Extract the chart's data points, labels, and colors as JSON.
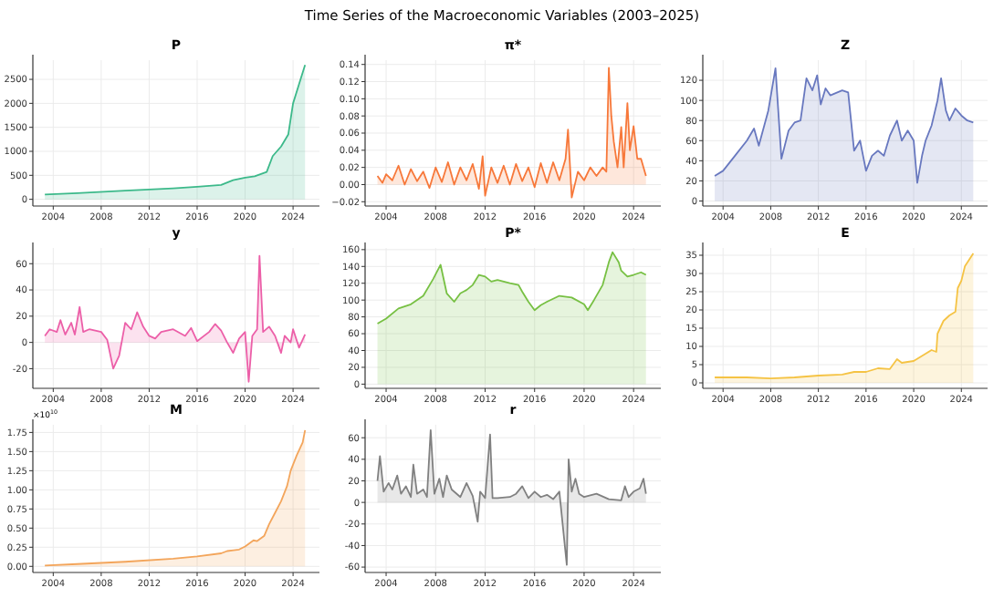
{
  "chart_data": [
    {
      "type": "area",
      "title": "P",
      "annotations": [
        "Time Series of the Macroeconomic Variables (2003–2025)"
      ],
      "grid": true,
      "xlim": [
        2002.3,
        2026.2
      ],
      "xticks": [
        2004,
        2008,
        2012,
        2016,
        2020,
        2024
      ],
      "ylim": [
        -140,
        2900
      ],
      "yticks": [
        0,
        500,
        1000,
        1500,
        2000,
        2500
      ],
      "x": [
        2003.3,
        2006,
        2010,
        2014,
        2016,
        2018,
        2019,
        2020,
        2020.8,
        2021.8,
        2022.3,
        2023,
        2023.6,
        2024,
        2024.5,
        2025
      ],
      "series": [
        {
          "color": "#3cb98a",
          "values": [
            100,
            130,
            180,
            230,
            260,
            300,
            400,
            450,
            480,
            570,
            900,
            1100,
            1350,
            2000,
            2400,
            2800
          ]
        }
      ]
    },
    {
      "type": "area",
      "title": "π*",
      "grid": true,
      "xlim": [
        2002.3,
        2026.2
      ],
      "xticks": [
        2004,
        2008,
        2012,
        2016,
        2020,
        2024
      ],
      "ylim": [
        -0.025,
        0.145
      ],
      "yticks": [
        {
          "value": -0.02,
          "label": "−0.02"
        },
        {
          "value": 0,
          "label": "0.00"
        },
        {
          "value": 0.02,
          "label": "0.02"
        },
        {
          "value": 0.04,
          "label": "0.04"
        },
        {
          "value": 0.06,
          "label": "0.06"
        },
        {
          "value": 0.08,
          "label": "0.08"
        },
        {
          "value": 0.1,
          "label": "0.10"
        },
        {
          "value": 0.12,
          "label": "0.12"
        },
        {
          "value": 0.14,
          "label": "0.14"
        }
      ],
      "x": [
        2003.3,
        2003.7,
        2004,
        2004.5,
        2005,
        2005.5,
        2006,
        2006.5,
        2007,
        2007.5,
        2008,
        2008.5,
        2009,
        2009.5,
        2010,
        2010.5,
        2011,
        2011.5,
        2011.8,
        2012,
        2012.5,
        2013,
        2013.5,
        2014,
        2014.5,
        2015,
        2015.5,
        2016,
        2016.5,
        2017,
        2017.5,
        2018,
        2018.5,
        2018.7,
        2019,
        2019.5,
        2020,
        2020.5,
        2021,
        2021.5,
        2021.8,
        2022,
        2022.2,
        2022.4,
        2022.7,
        2023,
        2023.2,
        2023.5,
        2023.7,
        2024,
        2024.3,
        2024.6,
        2025
      ],
      "series": [
        {
          "color": "#f7783a",
          "values": [
            0.01,
            0.002,
            0.012,
            0.005,
            0.022,
            0.0,
            0.018,
            0.004,
            0.015,
            -0.004,
            0.02,
            0.003,
            0.026,
            0.0,
            0.02,
            0.005,
            0.024,
            -0.005,
            0.033,
            -0.013,
            0.02,
            0.002,
            0.022,
            0.0,
            0.024,
            0.004,
            0.02,
            -0.003,
            0.025,
            0.002,
            0.026,
            0.005,
            0.03,
            0.064,
            -0.015,
            0.015,
            0.005,
            0.02,
            0.01,
            0.02,
            0.015,
            0.136,
            0.08,
            0.05,
            0.02,
            0.067,
            0.02,
            0.095,
            0.04,
            0.068,
            0.03,
            0.03,
            0.01
          ]
        }
      ]
    },
    {
      "type": "area",
      "title": "Z",
      "grid": true,
      "xlim": [
        2002.3,
        2026.2
      ],
      "xticks": [
        2004,
        2008,
        2012,
        2016,
        2020,
        2024
      ],
      "ylim": [
        -5,
        140
      ],
      "yticks": [
        0,
        20,
        40,
        60,
        80,
        100,
        120
      ],
      "x": [
        2003.3,
        2004,
        2005,
        2006,
        2006.6,
        2007,
        2007.8,
        2008.4,
        2008.9,
        2009.5,
        2010,
        2010.5,
        2011,
        2011.5,
        2011.9,
        2012.2,
        2012.6,
        2013,
        2014,
        2014.5,
        2015,
        2015.5,
        2016,
        2016.5,
        2017,
        2017.5,
        2018,
        2018.6,
        2019,
        2019.5,
        2020,
        2020.3,
        2020.7,
        2021,
        2021.5,
        2022,
        2022.3,
        2022.7,
        2023,
        2023.5,
        2024,
        2024.5,
        2025
      ],
      "series": [
        {
          "color": "#6878bf",
          "values": [
            25,
            30,
            45,
            60,
            72,
            55,
            90,
            132,
            42,
            70,
            78,
            80,
            122,
            110,
            125,
            96,
            112,
            105,
            110,
            108,
            50,
            60,
            30,
            45,
            50,
            45,
            65,
            80,
            60,
            70,
            60,
            18,
            45,
            60,
            75,
            100,
            122,
            90,
            80,
            92,
            85,
            80,
            78
          ]
        }
      ]
    },
    {
      "type": "area",
      "title": "y",
      "grid": true,
      "xlim": [
        2002.3,
        2026.2
      ],
      "xticks": [
        2004,
        2008,
        2012,
        2016,
        2020,
        2024
      ],
      "ylim": [
        -35,
        72
      ],
      "yticks": [
        -20,
        0,
        20,
        40,
        60
      ],
      "x": [
        2003.3,
        2003.7,
        2004.3,
        2004.6,
        2005,
        2005.5,
        2005.8,
        2006.2,
        2006.5,
        2007,
        2008,
        2008.5,
        2009,
        2009.5,
        2010,
        2010.5,
        2011,
        2011.5,
        2012,
        2012.5,
        2013,
        2014,
        2015,
        2015.5,
        2016,
        2017,
        2017.5,
        2018,
        2018.5,
        2019,
        2019.5,
        2020,
        2020.3,
        2020.6,
        2021,
        2021.2,
        2021.5,
        2022,
        2022.5,
        2023,
        2023.3,
        2023.8,
        2024,
        2024.5,
        2025
      ],
      "series": [
        {
          "color": "#ec5fa8",
          "values": [
            5,
            10,
            8,
            17,
            6,
            15,
            6,
            27,
            8,
            10,
            8,
            2,
            -20,
            -10,
            15,
            10,
            23,
            12,
            5,
            3,
            8,
            10,
            5,
            11,
            1,
            8,
            14,
            9,
            0,
            -8,
            3,
            8,
            -30,
            5,
            10,
            66,
            8,
            12,
            5,
            -8,
            5,
            0,
            10,
            -4,
            6
          ]
        }
      ]
    },
    {
      "type": "area",
      "title": "P*",
      "grid": true,
      "xlim": [
        2002.3,
        2026.2
      ],
      "xticks": [
        2004,
        2008,
        2012,
        2016,
        2020,
        2024
      ],
      "ylim": [
        -5,
        162
      ],
      "yticks": [
        0,
        20,
        40,
        60,
        80,
        100,
        120,
        140,
        160
      ],
      "x": [
        2003.3,
        2004,
        2005,
        2006,
        2007,
        2007.8,
        2008.4,
        2008.9,
        2009.5,
        2010,
        2010.5,
        2011,
        2011.5,
        2012,
        2012.5,
        2013,
        2014,
        2014.7,
        2015,
        2015.5,
        2016,
        2016.5,
        2017,
        2018,
        2019,
        2020,
        2020.3,
        2020.8,
        2021.5,
        2022,
        2022.3,
        2022.8,
        2023,
        2023.5,
        2024,
        2024.6,
        2025
      ],
      "series": [
        {
          "color": "#77c043",
          "values": [
            72,
            78,
            90,
            95,
            105,
            125,
            142,
            108,
            98,
            108,
            112,
            118,
            130,
            128,
            122,
            124,
            120,
            118,
            110,
            98,
            88,
            94,
            98,
            105,
            103,
            95,
            88,
            100,
            118,
            145,
            157,
            145,
            135,
            128,
            130,
            133,
            130
          ]
        }
      ]
    },
    {
      "type": "area",
      "title": "E",
      "grid": true,
      "xlim": [
        2002.3,
        2026.2
      ],
      "xticks": [
        2004,
        2008,
        2012,
        2016,
        2020,
        2024
      ],
      "ylim": [
        -1.5,
        37
      ],
      "yticks": [
        0,
        5,
        10,
        15,
        20,
        25,
        30,
        35
      ],
      "x": [
        2003.3,
        2006,
        2008,
        2010,
        2012,
        2014,
        2015,
        2016,
        2017,
        2018,
        2018.6,
        2019,
        2020,
        2021,
        2021.5,
        2021.9,
        2022,
        2022.5,
        2023,
        2023.5,
        2023.7,
        2024,
        2024.3,
        2025
      ],
      "series": [
        {
          "color": "#f5c344",
          "values": [
            1.5,
            1.5,
            1.2,
            1.5,
            2,
            2.3,
            3,
            3,
            4,
            3.8,
            6.5,
            5.5,
            6,
            8,
            9,
            8.5,
            13.5,
            17,
            18.5,
            19.5,
            26,
            28,
            32,
            35.5
          ]
        }
      ]
    },
    {
      "type": "area",
      "title": "M",
      "annotations": [
        "×10$^{10}$"
      ],
      "grid": true,
      "xlim": [
        2002.3,
        2026.2
      ],
      "xticks": [
        2004,
        2008,
        2012,
        2016,
        2020,
        2024
      ],
      "ylim": [
        -0.08,
        1.85
      ],
      "yticks": [
        {
          "value": 0,
          "label": "0.00"
        },
        {
          "value": 0.25,
          "label": "0.25"
        },
        {
          "value": 0.5,
          "label": "0.50"
        },
        {
          "value": 0.75,
          "label": "0.75"
        },
        {
          "value": 1,
          "label": "1.00"
        },
        {
          "value": 1.25,
          "label": "1.25"
        },
        {
          "value": 1.5,
          "label": "1.50"
        },
        {
          "value": 1.75,
          "label": "1.75"
        }
      ],
      "x": [
        2003.3,
        2006,
        2010,
        2014,
        2016,
        2018,
        2018.5,
        2019.5,
        2020,
        2020.7,
        2021,
        2021.6,
        2022,
        2022.5,
        2023,
        2023.5,
        2023.8,
        2024.3,
        2024.8,
        2025
      ],
      "series": [
        {
          "color": "#f3a55b",
          "values": [
            0.01,
            0.03,
            0.06,
            0.1,
            0.13,
            0.17,
            0.2,
            0.22,
            0.26,
            0.34,
            0.33,
            0.4,
            0.55,
            0.7,
            0.85,
            1.05,
            1.25,
            1.45,
            1.62,
            1.78
          ]
        }
      ]
    },
    {
      "type": "area",
      "title": "r",
      "grid": true,
      "xlim": [
        2002.3,
        2026.2
      ],
      "xticks": [
        2004,
        2008,
        2012,
        2016,
        2020,
        2024
      ],
      "ylim": [
        -65,
        72
      ],
      "yticks": [
        -60,
        -40,
        -20,
        0,
        20,
        40,
        60
      ],
      "x": [
        2003.3,
        2003.5,
        2003.8,
        2004.2,
        2004.5,
        2004.9,
        2005.2,
        2005.6,
        2006,
        2006.2,
        2006.5,
        2007,
        2007.3,
        2007.6,
        2007.9,
        2008.3,
        2008.6,
        2008.9,
        2009.3,
        2010,
        2010.5,
        2011,
        2011.4,
        2011.6,
        2012,
        2012.4,
        2012.6,
        2013,
        2014,
        2014.5,
        2015,
        2015.5,
        2016,
        2016.5,
        2017,
        2017.5,
        2018,
        2018.6,
        2018.75,
        2019,
        2019.3,
        2019.6,
        2020,
        2021,
        2022,
        2023,
        2023.3,
        2023.6,
        2024,
        2024.5,
        2024.8,
        2025
      ],
      "series": [
        {
          "color": "#808080",
          "values": [
            20,
            43,
            10,
            18,
            12,
            25,
            8,
            15,
            5,
            35,
            8,
            12,
            5,
            67,
            8,
            22,
            5,
            25,
            12,
            5,
            18,
            6,
            -18,
            10,
            4,
            63,
            4,
            4,
            5,
            8,
            15,
            4,
            10,
            5,
            7,
            3,
            10,
            -58,
            40,
            10,
            22,
            8,
            5,
            8,
            3,
            2,
            15,
            5,
            10,
            13,
            22,
            8
          ]
        }
      ]
    }
  ]
}
